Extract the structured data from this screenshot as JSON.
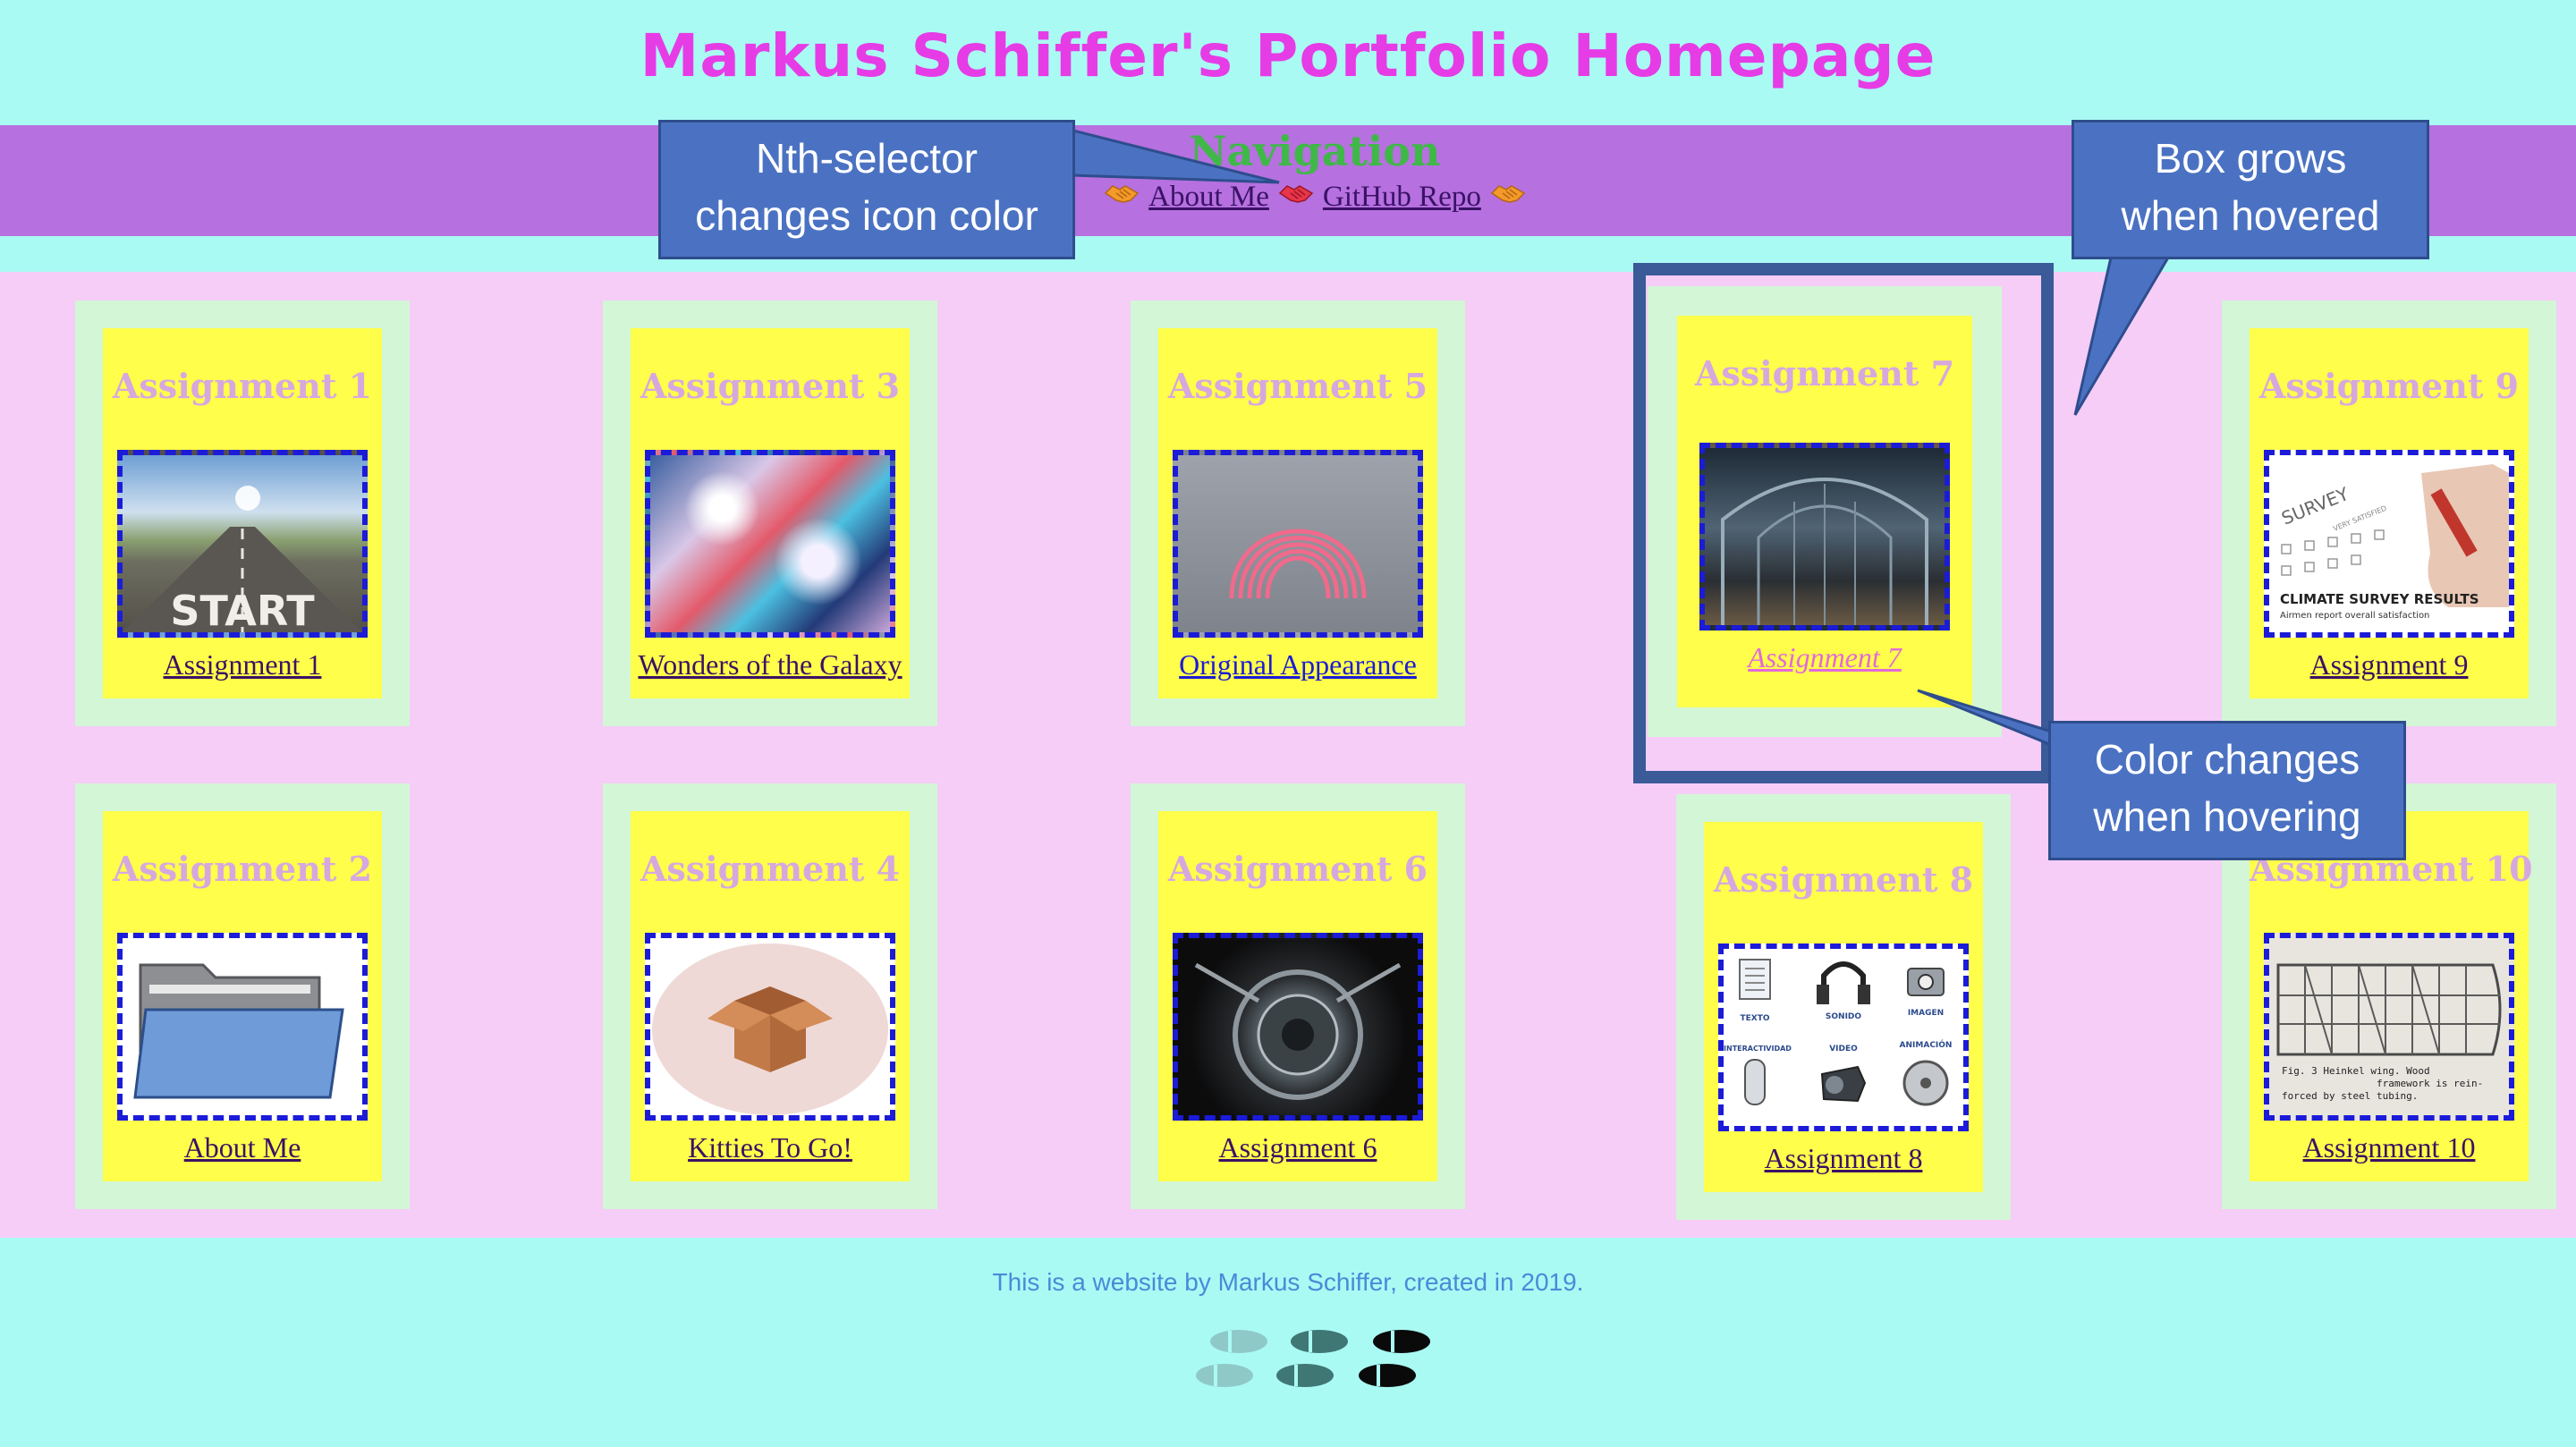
{
  "header": {
    "title": "Markus Schiffer's Portfolio Homepage"
  },
  "nav": {
    "heading": "Navigation",
    "links": [
      "About Me",
      "GitHub Repo"
    ],
    "icon": "handshake-icon",
    "icon_colors": [
      "#f39a2a",
      "#e8354a",
      "#f39a2a"
    ]
  },
  "cards": [
    {
      "title": "Assignment 1",
      "link": "Assignment 1",
      "image": "start-road-image"
    },
    {
      "title": "Assignment 3",
      "link": "Wonders of the Galaxy",
      "image": "galaxy-image"
    },
    {
      "title": "Assignment 5",
      "link": "Original Appearance",
      "image": "slinky-image"
    },
    {
      "title": "Assignment 7",
      "link": "Assignment 7",
      "image": "museum-hall-image"
    },
    {
      "title": "Assignment 9",
      "link": "Assignment 9",
      "image": "survey-image",
      "image_text": [
        "SURVEY",
        "VERY SATISFIED",
        "CLIMATE SURVEY RESULTS",
        "Airmen report overall satisfaction"
      ]
    },
    {
      "title": "Assignment 2",
      "link": "About Me",
      "image": "folder-image"
    },
    {
      "title": "Assignment 4",
      "link": "Kitties To Go!",
      "image": "cardboard-box-image"
    },
    {
      "title": "Assignment 6",
      "link": "Assignment 6",
      "image": "camera-lens-image"
    },
    {
      "title": "Assignment 8",
      "link": "Assignment 8",
      "image": "media-icons-image",
      "image_text": [
        "TEXTO",
        "SONIDO",
        "IMAGEN",
        "INTERACTIVIDAD",
        "VIDEO",
        "ANIMACIÓN"
      ]
    },
    {
      "title": "Assignment 10",
      "link": "Assignment 10",
      "image": "wing-frame-image",
      "image_text": [
        "Fig. 3   Heinkel wing. Wood",
        "framework is rein-",
        "forced by steel tubing."
      ]
    }
  ],
  "callouts": {
    "nth_selector": [
      "Nth-selector",
      "changes icon color"
    ],
    "box_grows": [
      "Box grows",
      "when hovered"
    ],
    "color_changes": [
      "Color changes",
      "when hovering"
    ]
  },
  "footer": {
    "text": "This is a website by Markus Schiffer, created in 2019.",
    "icon": "footprints-icon"
  },
  "colors": {
    "page_bg": "#aafaf4",
    "title": "#e63ce6",
    "nav_bg": "#b670df",
    "nav_heading": "#3fb848",
    "grid_bg": "#f5cdf7",
    "card_outer": "#d3f6d6",
    "card_inner": "#fffe4a",
    "card_title": "#d6a8df",
    "thumb_border": "#1b1bd8",
    "link_hover": "#e26ad8",
    "callout": "#4b72c2"
  }
}
